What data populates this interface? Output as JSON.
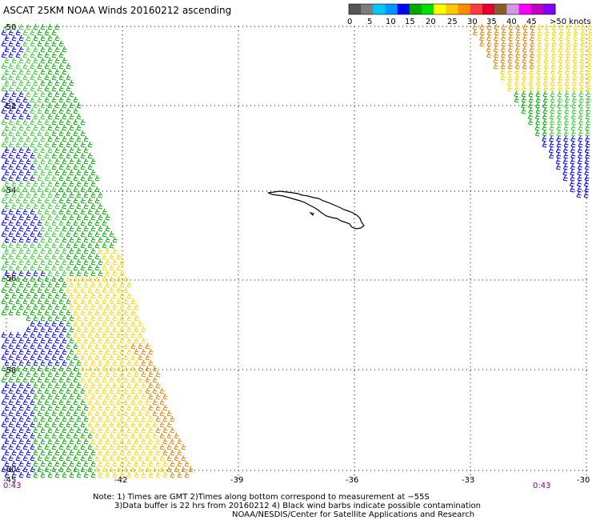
{
  "title": "ASCAT 25KM NOAA Winds 20160212 ascending",
  "legend": {
    "colors": [
      "#555555",
      "#7d7d7d",
      "#00c8ff",
      "#0096ff",
      "#0000ff",
      "#00aa00",
      "#00dd00",
      "#ffff00",
      "#ffc800",
      "#ff8c00",
      "#ff3c3c",
      "#e6002d",
      "#8b5a2b",
      "#d19ae0",
      "#ff00ff",
      "#c000c0",
      "#8000ff"
    ],
    "labels": [
      "0",
      "5",
      "10",
      "15",
      "20",
      "25",
      "30",
      "35",
      "40",
      "45",
      ">50 knots"
    ]
  },
  "axes": {
    "lat_labels": [
      "-50",
      "-52",
      "-54",
      "-56",
      "-58",
      "-60"
    ],
    "lon_labels": [
      "-45",
      "-42",
      "-39",
      "-36",
      "-33",
      "-30"
    ]
  },
  "time_left": "0:43",
  "time_right": "0:43",
  "notes": {
    "line1": "Note: 1) Times are GMT 2)Times along bottom correspond to measurement at −55S",
    "line2": "3)Data buffer is 22 hrs from 20160212 4) Black wind barbs indicate possible contamination",
    "line3": "NOAA/NESDIS/Center for Satellite Applications and Research"
  },
  "wind_colors": {
    "blue": "#0000ff",
    "green": "#00aa00",
    "lightgreen": "#33cc33",
    "yellow": "#ffd700",
    "orange": "#e08000"
  }
}
